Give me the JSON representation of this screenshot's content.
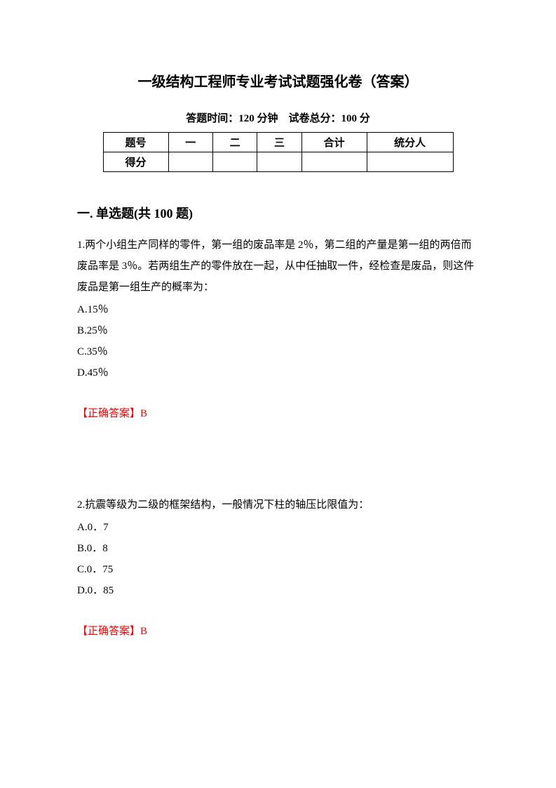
{
  "title": "一级结构工程师专业考试试题强化卷（答案）",
  "subtitle": "答题时间：120 分钟　试卷总分：100 分",
  "table": {
    "headers": [
      "题号",
      "一",
      "二",
      "三",
      "合计",
      "统分人"
    ],
    "row_label": "得分"
  },
  "section_title": "一. 单选题(共 100 题)",
  "questions": [
    {
      "text": "1.两个小组生产同样的零件，第一组的废品率是 2％，第二组的产量是第一组的两倍而废品率是 3％。若两组生产的零件放在一起，从中任抽取一件，经检查是废品，则这件废品是第一组生产的概率为：",
      "options": [
        "A.15％",
        "B.25％",
        "C.35％",
        "D.45％"
      ],
      "answer": "【正确答案】B"
    },
    {
      "text": "2.抗震等级为二级的框架结构，一般情况下柱的轴压比限值为：",
      "options": [
        "A.0．7",
        "B.0．8",
        "C.0．75",
        "D.0．85"
      ],
      "answer": "【正确答案】B"
    }
  ],
  "colors": {
    "text": "#000000",
    "answer": "#ff0000",
    "background": "#ffffff",
    "border": "#000000"
  }
}
